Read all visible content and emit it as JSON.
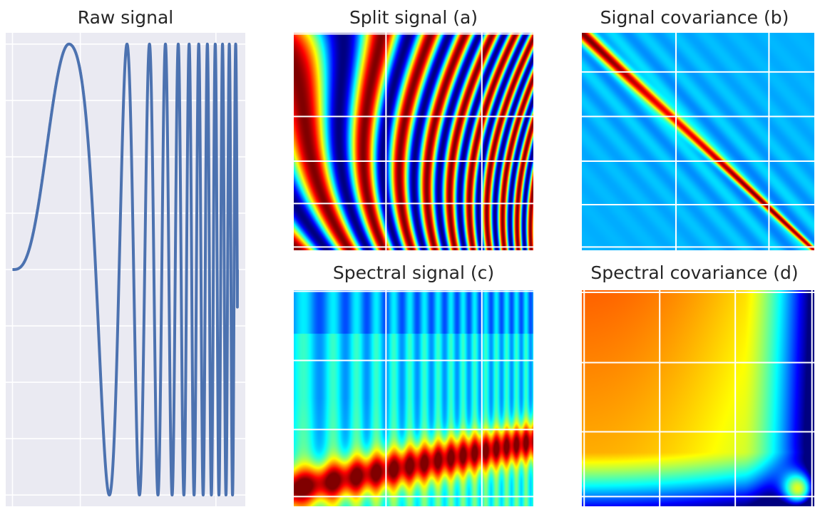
{
  "chart_data": [
    {
      "type": "line",
      "title": "Raw signal",
      "description": "chirp",
      "x": [
        0,
        0.05,
        0.1,
        0.15,
        0.2,
        0.25,
        0.3,
        0.35,
        0.4,
        0.45,
        0.5,
        0.55,
        0.6,
        0.65,
        0.7,
        0.75,
        0.8,
        0.85,
        0.9,
        0.95,
        1.0
      ],
      "y": [
        0,
        0.0,
        0.02,
        0.16,
        0.5,
        0.91,
        0.97,
        0.41,
        -0.56,
        -1.0,
        -0.13,
        0.93,
        0.48,
        -0.94,
        -0.31,
        1.0,
        -0.63,
        -0.44,
        0.99,
        -0.92,
        0.0
      ],
      "xlim": [
        -0.03,
        1.03
      ],
      "ylim": [
        -1.05,
        1.05
      ],
      "grid": true,
      "color": "#4c72b0"
    },
    {
      "type": "heatmap",
      "title": "Split signal (a)",
      "colormap": "jet",
      "pattern": "diagonal bands whose frequency increases along the diagonal",
      "grid": true
    },
    {
      "type": "heatmap",
      "title": "Signal covariance (b)",
      "colormap": "jet",
      "pattern": "peak on the main diagonal, low values elsewhere",
      "grid": true
    },
    {
      "type": "heatmap",
      "title": "Spectral signal (c)",
      "colormap": "jet",
      "pattern": "vertical stripes with a rising high-value band near the bottom",
      "grid": true
    },
    {
      "type": "heatmap",
      "title": "Spectral covariance (d)",
      "colormap": "jet",
      "pattern": "smooth gradient from high top-left to low right and bottom, with a peak at the bottom right",
      "grid": true
    }
  ]
}
